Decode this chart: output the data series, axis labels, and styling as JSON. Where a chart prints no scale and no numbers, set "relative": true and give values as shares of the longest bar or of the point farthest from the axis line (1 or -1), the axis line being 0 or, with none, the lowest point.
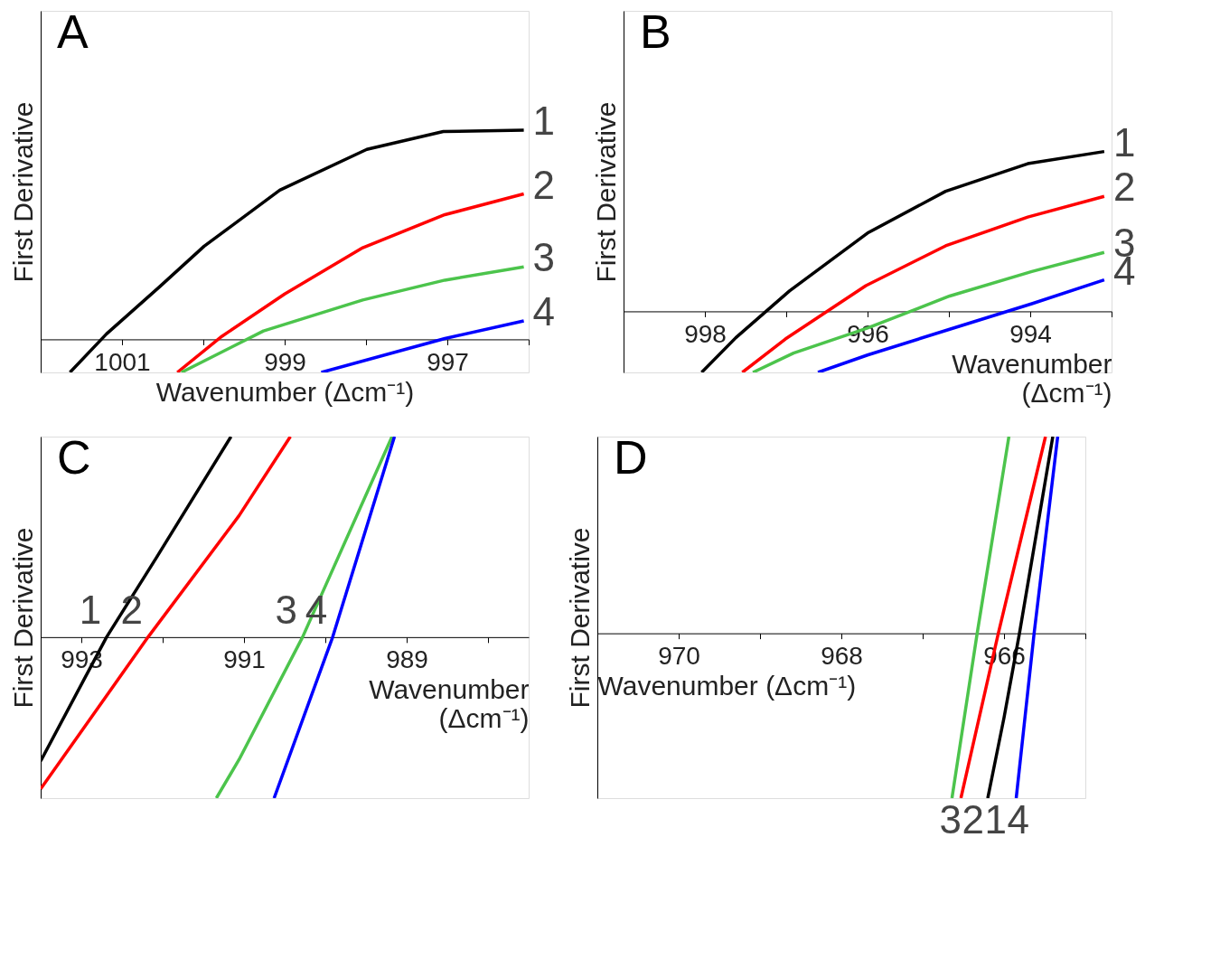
{
  "chart_data": [
    {
      "type": "line",
      "title": "A",
      "xlabel": "Wavenumber (Δcm⁻¹)",
      "ylabel": "First Derivative",
      "relative": true,
      "xlim": [
        1002,
        996
      ],
      "xticks": [
        1001,
        {
          "value": 1000,
          "label": null
        },
        999,
        {
          "value": 998,
          "label": null
        },
        997,
        {
          "value": 996,
          "label": null
        }
      ],
      "series": [
        {
          "name": "1",
          "color": "#000000",
          "x": [
            1001.64,
            1001.19,
            1000.53,
            999.99,
            999.06,
            997.99,
            997.05,
            996.06
          ],
          "values": [
            -0.158,
            0.026,
            0.254,
            0.445,
            0.713,
            0.908,
            0.993,
            1.0
          ]
        },
        {
          "name": "2",
          "color": "#ff0000",
          "x": [
            1000.32,
            999.77,
            999.0,
            998.04,
            997.03,
            996.06
          ],
          "values": [
            -0.158,
            0.015,
            0.217,
            0.438,
            0.596,
            0.695
          ]
        },
        {
          "name": "3",
          "color": "#4cc44c",
          "x": [
            1000.27,
            999.26,
            998.04,
            997.03,
            996.06
          ],
          "values": [
            -0.158,
            0.04,
            0.188,
            0.283,
            0.346
          ]
        },
        {
          "name": "4",
          "color": "#0000ff",
          "x": [
            998.55,
            997.03,
            996.06
          ],
          "values": [
            -0.158,
            0.004,
            0.088
          ]
        }
      ]
    },
    {
      "type": "line",
      "title": "B",
      "xlabel": "Wavenumber (Δcm⁻¹)",
      "ylabel": "First Derivative",
      "relative": true,
      "xlim": [
        999,
        993
      ],
      "xticks": [
        998,
        {
          "value": 997,
          "label": null
        },
        996,
        {
          "value": 995,
          "label": null
        },
        994,
        {
          "value": 993,
          "label": null
        }
      ],
      "series": [
        {
          "name": "1",
          "color": "#000000",
          "x": [
            998.04,
            997.62,
            996.96,
            996.0,
            995.04,
            994.03,
            993.09
          ],
          "values": [
            -0.382,
            -0.165,
            0.128,
            0.49,
            0.751,
            0.924,
            1.0
          ]
        },
        {
          "name": "2",
          "color": "#ff0000",
          "x": [
            997.54,
            997.01,
            996.02,
            995.04,
            994.03,
            993.09
          ],
          "values": [
            -0.382,
            -0.173,
            0.161,
            0.41,
            0.59,
            0.719
          ]
        },
        {
          "name": "3",
          "color": "#4cc44c",
          "x": [
            997.41,
            996.91,
            996.0,
            994.99,
            993.98,
            993.09
          ],
          "values": [
            -0.382,
            -0.261,
            -0.104,
            0.096,
            0.249,
            0.369
          ]
        },
        {
          "name": "4",
          "color": "#0000ff",
          "x": [
            996.61,
            996.0,
            994.99,
            993.98,
            993.09
          ],
          "values": [
            -0.382,
            -0.273,
            -0.112,
            0.048,
            0.197
          ]
        }
      ]
    },
    {
      "type": "line",
      "title": "C",
      "xlabel": "Wavenumber (Δcm⁻¹)",
      "ylabel": "First Derivative",
      "relative": true,
      "xlim": [
        993.5,
        987.5
      ],
      "xticks": [
        993,
        {
          "value": 992,
          "label": null
        },
        991,
        {
          "value": 990,
          "label": null
        },
        989,
        {
          "value": 988,
          "label": null
        }
      ],
      "series": [
        {
          "name": "1",
          "color": "#000000",
          "x": [
            993.5,
            992.69,
            992.08,
            991.16
          ],
          "values": [
            -0.618,
            0,
            0.394,
            1.0
          ]
        },
        {
          "name": "2",
          "color": "#ff0000",
          "x": [
            993.5,
            992.18,
            991.06,
            990.43
          ],
          "values": [
            -0.757,
            0,
            0.606,
            1.0
          ]
        },
        {
          "name": "3",
          "color": "#4cc44c",
          "x": [
            991.34,
            991.06,
            990.28,
            989.18
          ],
          "values": [
            -0.803,
            -0.61,
            0,
            1.0
          ]
        },
        {
          "name": "4",
          "color": "#0000ff",
          "x": [
            990.63,
            989.91,
            989.15
          ],
          "values": [
            -0.803,
            0,
            1.0
          ]
        }
      ]
    },
    {
      "type": "line",
      "title": "D",
      "xlabel": "Wavenumber (Δcm⁻¹)",
      "ylabel": "First Derivative",
      "relative": true,
      "xlim": [
        971,
        965
      ],
      "xticks": [
        970,
        {
          "value": 969,
          "label": null
        },
        968,
        {
          "value": 967,
          "label": null
        },
        966,
        {
          "value": 965,
          "label": null
        }
      ],
      "series": [
        {
          "name": "3",
          "color": "#4cc44c",
          "x": [
            966.64,
            966.33,
            965.94
          ],
          "values": [
            -0.838,
            0,
            1.0
          ]
        },
        {
          "name": "2",
          "color": "#ff0000",
          "x": [
            966.53,
            966.07,
            965.49
          ],
          "values": [
            -0.838,
            0,
            1.0
          ]
        },
        {
          "name": "1",
          "color": "#000000",
          "x": [
            966.2,
            966.0,
            965.81,
            965.4
          ],
          "values": [
            -0.838,
            -0.429,
            0,
            1.0
          ]
        },
        {
          "name": "4",
          "color": "#0000ff",
          "x": [
            965.85,
            965.63,
            965.34
          ],
          "values": [
            -0.838,
            0,
            1.0
          ]
        }
      ]
    }
  ]
}
